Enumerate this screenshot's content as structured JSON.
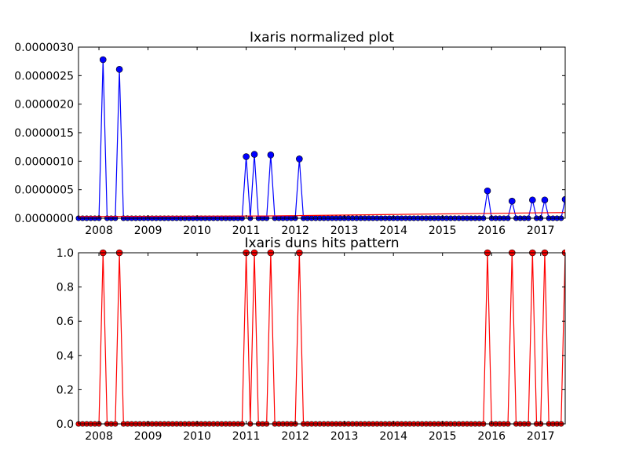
{
  "chart_data": [
    {
      "type": "line",
      "title": "Ixaris normalized plot",
      "xlabel": "",
      "ylabel": "",
      "x_ticks": [
        "2008",
        "2009",
        "2010",
        "2011",
        "2012",
        "2013",
        "2014",
        "2015",
        "2016",
        "2017"
      ],
      "y_ticks": [
        "0.0000000",
        "0.0000005",
        "0.0000010",
        "0.0000015",
        "0.0000020",
        "0.0000025",
        "0.0000030"
      ],
      "xlim": [
        "2007-08-01",
        "2017-07-01"
      ],
      "ylim": [
        0,
        3e-06
      ],
      "grid": false,
      "series": [
        {
          "color": "#0000ff",
          "marker": "circle",
          "zero_baseline": true,
          "points": [
            {
              "x": "2008-02-01",
              "y": 2.78e-06
            },
            {
              "x": "2008-06-01",
              "y": 2.61e-06
            },
            {
              "x": "2011-01-01",
              "y": 1.08e-06
            },
            {
              "x": "2011-03-01",
              "y": 1.12e-06
            },
            {
              "x": "2011-07-01",
              "y": 1.11e-06
            },
            {
              "x": "2012-02-01",
              "y": 1.04e-06
            },
            {
              "x": "2015-12-01",
              "y": 4.8e-07
            },
            {
              "x": "2016-06-01",
              "y": 3e-07
            },
            {
              "x": "2016-11-01",
              "y": 3.2e-07
            },
            {
              "x": "2017-02-01",
              "y": 3.2e-07
            },
            {
              "x": "2017-07-01",
              "y": 3.3e-07
            }
          ]
        },
        {
          "color": "#ff0000",
          "marker": "none",
          "points": [
            {
              "x": "2007-08-01",
              "y": 3e-08
            },
            {
              "x": "2011-06-01",
              "y": 4e-08
            },
            {
              "x": "2017-07-01",
              "y": 1e-07
            }
          ]
        }
      ]
    },
    {
      "type": "line",
      "title": "Ixaris duns hits pattern",
      "xlabel": "",
      "ylabel": "",
      "x_ticks": [
        "2008",
        "2009",
        "2010",
        "2011",
        "2012",
        "2013",
        "2014",
        "2015",
        "2016",
        "2017"
      ],
      "y_ticks": [
        "0.0",
        "0.2",
        "0.4",
        "0.6",
        "0.8",
        "1.0"
      ],
      "xlim": [
        "2007-08-01",
        "2017-07-01"
      ],
      "ylim": [
        0,
        1
      ],
      "grid": false,
      "series": [
        {
          "color": "#ff0000",
          "marker": "circle",
          "zero_baseline": true,
          "points": [
            {
              "x": "2008-02-01",
              "y": 1
            },
            {
              "x": "2008-06-01",
              "y": 1
            },
            {
              "x": "2011-01-01",
              "y": 1
            },
            {
              "x": "2011-03-01",
              "y": 1
            },
            {
              "x": "2011-07-01",
              "y": 1
            },
            {
              "x": "2012-02-01",
              "y": 1
            },
            {
              "x": "2015-12-01",
              "y": 1
            },
            {
              "x": "2016-06-01",
              "y": 1
            },
            {
              "x": "2016-11-01",
              "y": 1
            },
            {
              "x": "2017-02-01",
              "y": 1
            },
            {
              "x": "2017-07-01",
              "y": 1
            }
          ]
        }
      ]
    }
  ]
}
